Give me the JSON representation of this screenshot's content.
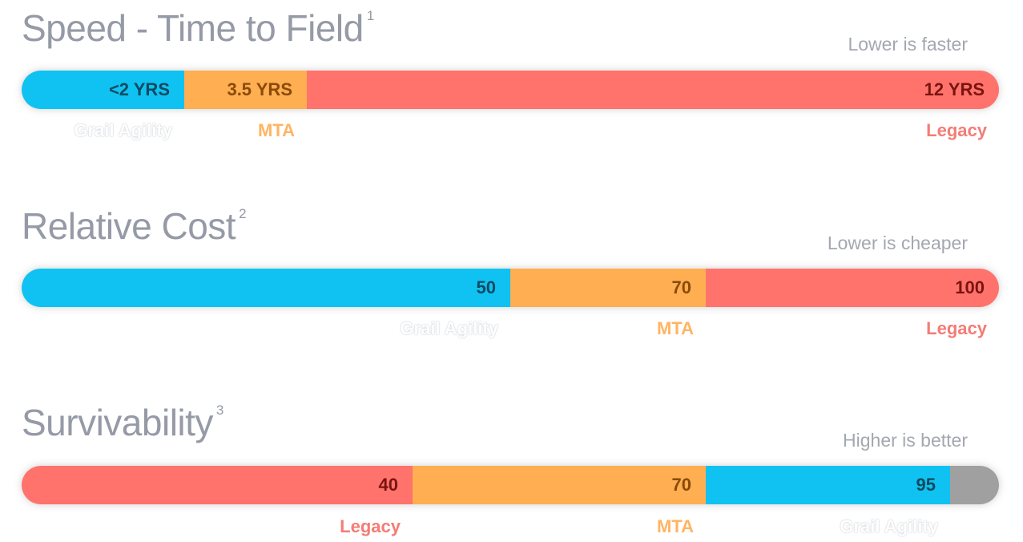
{
  "colors": {
    "blue": "#10c2f2",
    "orange": "#ffae52",
    "red": "#ff736c",
    "gray": "#a0a0a0"
  },
  "chart_data": [
    {
      "type": "bar",
      "orientation": "horizontal-stacked",
      "title": "Speed - Time to Field",
      "footnote": "1",
      "note": "Lower is faster",
      "unit": "years",
      "max": 12,
      "segments": [
        {
          "name": "Grail Agility",
          "value": 2,
          "value_label": "<2 YRS",
          "color": "blue"
        },
        {
          "name": "MTA",
          "value": 3.5,
          "value_label": "3.5 YRS",
          "color": "orange"
        },
        {
          "name": "Legacy",
          "value": 12,
          "value_label": "12 YRS",
          "color": "red"
        }
      ]
    },
    {
      "type": "bar",
      "orientation": "horizontal-stacked",
      "title": "Relative Cost",
      "footnote": "2",
      "note": "Lower is cheaper",
      "max": 100,
      "segments": [
        {
          "name": "Grail Agility",
          "value": 50,
          "value_label": "50",
          "color": "blue"
        },
        {
          "name": "MTA",
          "value": 70,
          "value_label": "70",
          "color": "orange"
        },
        {
          "name": "Legacy",
          "value": 100,
          "value_label": "100",
          "color": "red"
        }
      ]
    },
    {
      "type": "bar",
      "orientation": "horizontal-stacked",
      "title": "Survivability",
      "footnote": "3",
      "note": "Higher is better",
      "max": 100,
      "segments": [
        {
          "name": "Legacy",
          "value": 40,
          "value_label": "40",
          "color": "red"
        },
        {
          "name": "MTA",
          "value": 70,
          "value_label": "70",
          "color": "orange"
        },
        {
          "name": "Grail Agility",
          "value": 95,
          "value_label": "95",
          "color": "blue"
        },
        {
          "name": "",
          "value": 100,
          "value_label": "",
          "color": "gray"
        }
      ]
    }
  ]
}
